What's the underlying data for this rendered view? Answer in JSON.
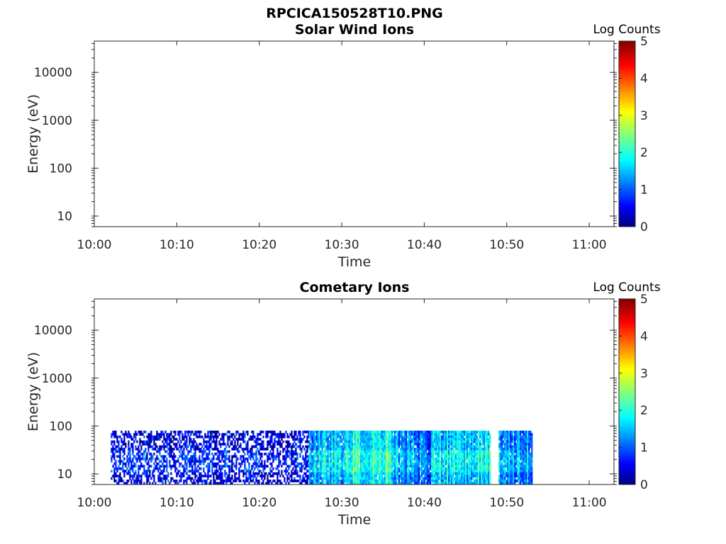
{
  "figure_title": "RPCICA150528T10.PNG",
  "chart_data": [
    {
      "type": "heatmap",
      "title": "Solar Wind Ions",
      "xlabel": "Time",
      "ylabel": "Energy (eV)",
      "x_ticks": [
        "10:00",
        "10:10",
        "10:20",
        "10:30",
        "10:40",
        "10:50",
        "11:00"
      ],
      "y_ticks": [
        "10",
        "100",
        "1000",
        "10000"
      ],
      "y_scale": "log",
      "y_range_ev": [
        6,
        45000
      ],
      "colorbar_label": "Log Counts",
      "colorbar_ticks": [
        "0",
        "1",
        "2",
        "3",
        "4",
        "5"
      ],
      "data": []
    },
    {
      "type": "heatmap",
      "title": "Cometary Ions",
      "xlabel": "Time",
      "ylabel": "Energy (eV)",
      "x_ticks": [
        "10:00",
        "10:10",
        "10:20",
        "10:30",
        "10:40",
        "10:50",
        "11:00"
      ],
      "y_ticks": [
        "10",
        "100",
        "1000",
        "10000"
      ],
      "y_scale": "log",
      "y_range_ev": [
        6,
        45000
      ],
      "colorbar_label": "Log Counts",
      "colorbar_ticks": [
        "0",
        "1",
        "2",
        "3",
        "4",
        "5"
      ],
      "data_extent": {
        "time_start": "10:02",
        "time_end": "10:53",
        "energy_max_ev": 80
      },
      "segments": [
        {
          "start": "10:02",
          "end": "10:26",
          "level_log_counts": 0.5,
          "sparsity": 0.45
        },
        {
          "start": "10:26",
          "end": "10:31",
          "level_log_counts": 1.5,
          "sparsity": 0.05
        },
        {
          "start": "10:31",
          "end": "10:36",
          "level_log_counts": 1.9,
          "sparsity": 0.02
        },
        {
          "start": "10:36",
          "end": "10:41",
          "level_log_counts": 1.2,
          "sparsity": 0.05
        },
        {
          "start": "10:41",
          "end": "10:48",
          "level_log_counts": 1.7,
          "sparsity": 0.03
        },
        {
          "start": "10:48",
          "end": "10:49",
          "level_log_counts": null,
          "sparsity": 1.0
        },
        {
          "start": "10:49",
          "end": "10:53",
          "level_log_counts": 1.3,
          "sparsity": 0.05
        }
      ]
    }
  ]
}
